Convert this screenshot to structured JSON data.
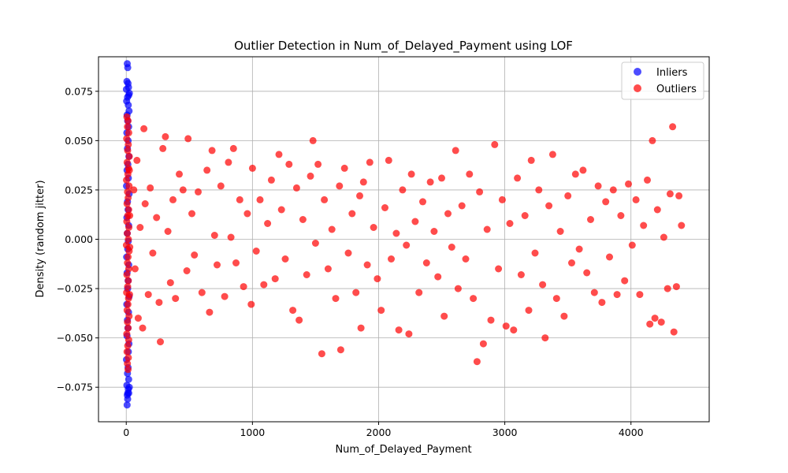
{
  "chart_data": {
    "type": "scatter",
    "title": "Outlier Detection in Num_of_Delayed_Payment using LOF",
    "xlabel": "Num_of_Delayed_Payment",
    "ylabel": "Density (random jitter)",
    "xlim": [
      -220,
      4620
    ],
    "ylim": [
      -0.0925,
      0.0925
    ],
    "x_ticks": [
      0,
      1000,
      2000,
      3000,
      4000
    ],
    "x_tick_labels": [
      "0",
      "1000",
      "2000",
      "3000",
      "4000"
    ],
    "y_ticks": [
      -0.075,
      -0.05,
      -0.025,
      0.0,
      0.025,
      0.05,
      0.075
    ],
    "y_tick_labels": [
      "−0.075",
      "−0.050",
      "−0.025",
      "0.000",
      "0.025",
      "0.050",
      "0.075"
    ],
    "grid": true,
    "legend_position": "top-right",
    "colors": {
      "inliers": "#0000ff",
      "outliers": "#ff0000"
    },
    "series": [
      {
        "name": "Inliers",
        "color": "#0000ff",
        "points": [
          [
            8,
            0.089
          ],
          [
            12,
            0.087
          ],
          [
            5,
            0.08
          ],
          [
            14,
            0.079
          ],
          [
            18,
            0.077
          ],
          [
            20,
            0.073
          ],
          [
            10,
            0.072
          ],
          [
            3,
            0.07
          ],
          [
            16,
            0.068
          ],
          [
            22,
            0.065
          ],
          [
            7,
            0.063
          ],
          [
            11,
            0.06
          ],
          [
            19,
            0.057
          ],
          [
            4,
            0.054
          ],
          [
            15,
            0.05
          ],
          [
            9,
            0.046
          ],
          [
            21,
            0.042
          ],
          [
            13,
            0.038
          ],
          [
            6,
            0.035
          ],
          [
            17,
            0.031
          ],
          [
            2,
            0.027
          ],
          [
            23,
            0.023
          ],
          [
            10,
            0.019
          ],
          [
            14,
            0.015
          ],
          [
            5,
            0.011
          ],
          [
            19,
            0.007
          ],
          [
            8,
            0.003
          ],
          [
            16,
            -0.001
          ],
          [
            12,
            -0.005
          ],
          [
            3,
            -0.009
          ],
          [
            20,
            -0.013
          ],
          [
            7,
            -0.017
          ],
          [
            15,
            -0.021
          ],
          [
            11,
            -0.025
          ],
          [
            22,
            -0.029
          ],
          [
            4,
            -0.033
          ],
          [
            18,
            -0.037
          ],
          [
            9,
            -0.041
          ],
          [
            13,
            -0.045
          ],
          [
            6,
            -0.049
          ],
          [
            21,
            -0.053
          ],
          [
            17,
            -0.057
          ],
          [
            2,
            -0.061
          ],
          [
            14,
            -0.065
          ],
          [
            10,
            -0.068
          ],
          [
            19,
            -0.071
          ],
          [
            5,
            -0.074
          ],
          [
            16,
            -0.076
          ],
          [
            12,
            -0.078
          ],
          [
            8,
            -0.079
          ],
          [
            20,
            -0.078
          ],
          [
            11,
            -0.081
          ],
          [
            7,
            -0.084
          ],
          [
            24,
            -0.075
          ],
          [
            1,
            0.076
          ],
          [
            25,
            0.074
          ]
        ]
      },
      {
        "name": "Outliers",
        "color": "#ff0000",
        "points": [
          [
            5,
            0.062
          ],
          [
            14,
            0.06
          ],
          [
            9,
            0.057
          ],
          [
            20,
            0.054
          ],
          [
            3,
            0.051
          ],
          [
            16,
            0.048
          ],
          [
            11,
            0.045
          ],
          [
            24,
            0.042
          ],
          [
            7,
            0.039
          ],
          [
            18,
            0.036
          ],
          [
            13,
            0.033
          ],
          [
            2,
            0.03
          ],
          [
            22,
            0.027
          ],
          [
            10,
            0.024
          ],
          [
            15,
            0.021
          ],
          [
            6,
            0.018
          ],
          [
            19,
            0.015
          ],
          [
            12,
            0.012
          ],
          [
            4,
            0.009
          ],
          [
            21,
            0.006
          ],
          [
            8,
            0.003
          ],
          [
            17,
            0.0
          ],
          [
            1,
            -0.003
          ],
          [
            23,
            -0.006
          ],
          [
            14,
            -0.009
          ],
          [
            9,
            -0.012
          ],
          [
            20,
            -0.015
          ],
          [
            5,
            -0.018
          ],
          [
            16,
            -0.021
          ],
          [
            11,
            -0.024
          ],
          [
            3,
            -0.027
          ],
          [
            18,
            -0.03
          ],
          [
            13,
            -0.033
          ],
          [
            7,
            -0.036
          ],
          [
            22,
            -0.039
          ],
          [
            10,
            -0.042
          ],
          [
            15,
            -0.045
          ],
          [
            4,
            -0.048
          ],
          [
            19,
            -0.051
          ],
          [
            12,
            -0.054
          ],
          [
            6,
            -0.057
          ],
          [
            17,
            -0.06
          ],
          [
            9,
            -0.063
          ],
          [
            14,
            -0.066
          ],
          [
            25,
            0.035
          ],
          [
            26,
            -0.028
          ],
          [
            27,
            0.012
          ],
          [
            28,
            -0.004
          ],
          [
            60,
            0.025
          ],
          [
            70,
            -0.015
          ],
          [
            85,
            0.04
          ],
          [
            95,
            -0.04
          ],
          [
            110,
            0.006
          ],
          [
            130,
            -0.045
          ],
          [
            140,
            0.056
          ],
          [
            150,
            0.018
          ],
          [
            175,
            -0.028
          ],
          [
            190,
            0.026
          ],
          [
            210,
            -0.007
          ],
          [
            240,
            0.011
          ],
          [
            260,
            -0.032
          ],
          [
            270,
            -0.052
          ],
          [
            290,
            0.046
          ],
          [
            310,
            0.052
          ],
          [
            330,
            0.004
          ],
          [
            350,
            -0.022
          ],
          [
            370,
            0.02
          ],
          [
            390,
            -0.03
          ],
          [
            420,
            0.033
          ],
          [
            450,
            0.025
          ],
          [
            480,
            -0.016
          ],
          [
            490,
            0.051
          ],
          [
            520,
            0.013
          ],
          [
            540,
            -0.008
          ],
          [
            570,
            0.024
          ],
          [
            600,
            -0.027
          ],
          [
            640,
            0.035
          ],
          [
            660,
            -0.037
          ],
          [
            680,
            0.045
          ],
          [
            700,
            0.002
          ],
          [
            720,
            -0.013
          ],
          [
            750,
            0.027
          ],
          [
            780,
            -0.029
          ],
          [
            810,
            0.039
          ],
          [
            830,
            0.001
          ],
          [
            850,
            0.046
          ],
          [
            870,
            -0.012
          ],
          [
            900,
            0.02
          ],
          [
            930,
            -0.024
          ],
          [
            960,
            0.013
          ],
          [
            990,
            -0.033
          ],
          [
            1000,
            0.036
          ],
          [
            1030,
            -0.006
          ],
          [
            1060,
            0.02
          ],
          [
            1090,
            -0.023
          ],
          [
            1120,
            0.008
          ],
          [
            1150,
            0.03
          ],
          [
            1180,
            -0.02
          ],
          [
            1210,
            0.043
          ],
          [
            1230,
            0.015
          ],
          [
            1260,
            -0.01
          ],
          [
            1290,
            0.038
          ],
          [
            1320,
            -0.036
          ],
          [
            1350,
            0.026
          ],
          [
            1370,
            -0.041
          ],
          [
            1400,
            0.01
          ],
          [
            1430,
            -0.018
          ],
          [
            1460,
            0.032
          ],
          [
            1480,
            0.05
          ],
          [
            1500,
            -0.002
          ],
          [
            1520,
            0.038
          ],
          [
            1550,
            -0.058
          ],
          [
            1570,
            0.02
          ],
          [
            1600,
            -0.015
          ],
          [
            1630,
            0.005
          ],
          [
            1660,
            -0.03
          ],
          [
            1690,
            0.027
          ],
          [
            1700,
            -0.056
          ],
          [
            1730,
            0.036
          ],
          [
            1760,
            -0.007
          ],
          [
            1790,
            0.013
          ],
          [
            1820,
            -0.027
          ],
          [
            1850,
            0.022
          ],
          [
            1860,
            -0.045
          ],
          [
            1880,
            0.029
          ],
          [
            1910,
            -0.013
          ],
          [
            1930,
            0.039
          ],
          [
            1960,
            0.006
          ],
          [
            1990,
            -0.02
          ],
          [
            2020,
            -0.036
          ],
          [
            2050,
            0.016
          ],
          [
            2080,
            0.04
          ],
          [
            2100,
            -0.01
          ],
          [
            2140,
            0.003
          ],
          [
            2160,
            -0.046
          ],
          [
            2190,
            0.025
          ],
          [
            2220,
            -0.003
          ],
          [
            2240,
            -0.048
          ],
          [
            2260,
            0.033
          ],
          [
            2290,
            0.009
          ],
          [
            2320,
            -0.027
          ],
          [
            2350,
            0.019
          ],
          [
            2380,
            -0.012
          ],
          [
            2410,
            0.029
          ],
          [
            2440,
            0.004
          ],
          [
            2470,
            -0.019
          ],
          [
            2500,
            0.031
          ],
          [
            2520,
            -0.039
          ],
          [
            2550,
            0.013
          ],
          [
            2580,
            -0.004
          ],
          [
            2610,
            0.045
          ],
          [
            2630,
            -0.025
          ],
          [
            2660,
            0.017
          ],
          [
            2690,
            -0.01
          ],
          [
            2720,
            0.033
          ],
          [
            2750,
            -0.03
          ],
          [
            2780,
            -0.062
          ],
          [
            2800,
            0.024
          ],
          [
            2830,
            -0.053
          ],
          [
            2860,
            0.005
          ],
          [
            2890,
            -0.041
          ],
          [
            2920,
            0.048
          ],
          [
            2950,
            -0.015
          ],
          [
            2980,
            0.02
          ],
          [
            3010,
            -0.044
          ],
          [
            3040,
            0.008
          ],
          [
            3070,
            -0.046
          ],
          [
            3100,
            0.031
          ],
          [
            3130,
            -0.018
          ],
          [
            3160,
            0.012
          ],
          [
            3190,
            -0.036
          ],
          [
            3210,
            0.04
          ],
          [
            3240,
            -0.007
          ],
          [
            3270,
            0.025
          ],
          [
            3300,
            -0.023
          ],
          [
            3320,
            -0.05
          ],
          [
            3350,
            0.017
          ],
          [
            3380,
            0.043
          ],
          [
            3410,
            -0.03
          ],
          [
            3440,
            0.004
          ],
          [
            3470,
            -0.039
          ],
          [
            3500,
            0.022
          ],
          [
            3530,
            -0.012
          ],
          [
            3560,
            0.033
          ],
          [
            3590,
            -0.005
          ],
          [
            3620,
            0.035
          ],
          [
            3650,
            -0.017
          ],
          [
            3680,
            0.01
          ],
          [
            3710,
            -0.027
          ],
          [
            3740,
            0.027
          ],
          [
            3770,
            -0.032
          ],
          [
            3800,
            0.019
          ],
          [
            3830,
            -0.009
          ],
          [
            3860,
            0.025
          ],
          [
            3890,
            -0.028
          ],
          [
            3920,
            0.012
          ],
          [
            3950,
            -0.021
          ],
          [
            3980,
            0.028
          ],
          [
            4010,
            -0.003
          ],
          [
            4040,
            0.02
          ],
          [
            4070,
            -0.028
          ],
          [
            4100,
            0.007
          ],
          [
            4130,
            0.03
          ],
          [
            4150,
            -0.043
          ],
          [
            4170,
            0.05
          ],
          [
            4190,
            -0.04
          ],
          [
            4210,
            0.015
          ],
          [
            4240,
            -0.042
          ],
          [
            4260,
            0.001
          ],
          [
            4290,
            -0.025
          ],
          [
            4310,
            0.023
          ],
          [
            4330,
            0.057
          ],
          [
            4340,
            -0.047
          ],
          [
            4360,
            -0.024
          ],
          [
            4380,
            0.022
          ],
          [
            4400,
            0.007
          ]
        ]
      }
    ]
  }
}
